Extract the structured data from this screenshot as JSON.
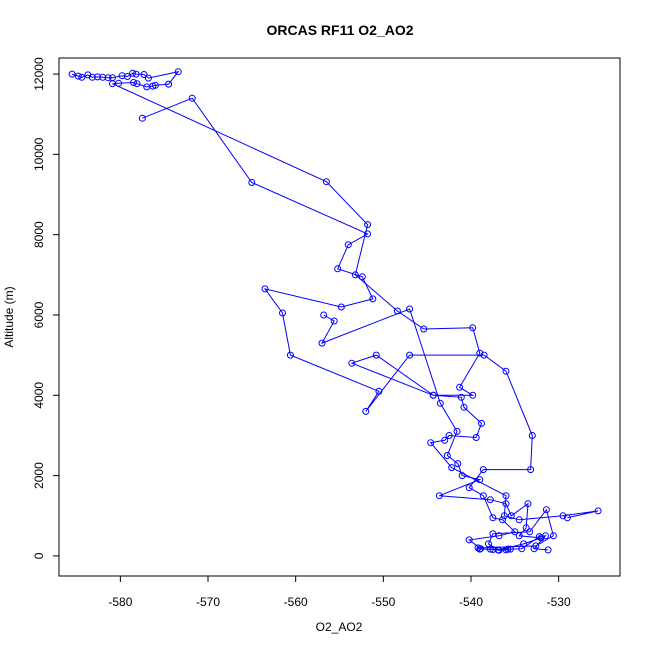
{
  "chart_data": {
    "type": "line",
    "title": "ORCAS RF11 O2_AO2",
    "xlabel": "O2_AO2",
    "ylabel": "Altitude (m)",
    "xlim": [
      -587,
      -523
    ],
    "ylim": [
      -500,
      12400
    ],
    "x_ticks": [
      -580,
      -570,
      -560,
      -550,
      -540,
      -530
    ],
    "y_ticks": [
      0,
      2000,
      4000,
      6000,
      8000,
      10000,
      12000
    ],
    "grid": false,
    "legend": "none",
    "series_color": "#0000ff",
    "markers": "open-circle",
    "series": [
      {
        "points": [
          [
            -585.5,
            12000
          ],
          [
            -584.8,
            11950
          ],
          [
            -584.4,
            11920
          ],
          [
            -583.7,
            11980
          ],
          [
            -583.2,
            11920
          ],
          [
            -582.6,
            11930
          ],
          [
            -582.0,
            11920
          ],
          [
            -581.4,
            11910
          ],
          [
            -580.9,
            11910
          ],
          [
            -579.8,
            11960
          ],
          [
            -579.2,
            11940
          ],
          [
            -578.6,
            12020
          ],
          [
            -578.2,
            12000
          ],
          [
            -577.3,
            11990
          ],
          [
            -576.8,
            11900
          ],
          [
            -573.4,
            12060
          ],
          [
            -574.5,
            11750
          ],
          [
            -576.0,
            11720
          ],
          [
            -576.3,
            11700
          ],
          [
            -577.0,
            11680
          ],
          [
            -578.1,
            11760
          ],
          [
            -578.5,
            11790
          ],
          [
            -580.2,
            11770
          ],
          [
            -580.9,
            11760
          ],
          [
            -556.5,
            9320
          ],
          [
            -551.8,
            8250
          ],
          [
            -553.2,
            7000
          ],
          [
            -548.4,
            6100
          ],
          [
            -545.4,
            5650
          ],
          [
            -539.8,
            5680
          ],
          [
            -539.0,
            5050
          ],
          [
            -541.3,
            4200
          ],
          [
            -539.8,
            4000
          ],
          [
            -544.3,
            4000
          ],
          [
            -550.8,
            5000
          ],
          [
            -553.6,
            4800
          ],
          [
            -544.3,
            4000
          ],
          [
            -541.1,
            3950
          ],
          [
            -540.8,
            3700
          ],
          [
            -538.8,
            3300
          ],
          [
            -539.4,
            2950
          ],
          [
            -542.5,
            3000
          ],
          [
            -543.0,
            2880
          ],
          [
            -544.6,
            2820
          ],
          [
            -542.2,
            2200
          ],
          [
            -536.0,
            1500
          ],
          [
            -536.2,
            1000
          ],
          [
            -534.5,
            900
          ],
          [
            -529.5,
            1000
          ],
          [
            -525.5,
            1120
          ],
          [
            -529.0,
            950
          ]
        ]
      },
      {
        "points": [
          [
            -577.5,
            10900
          ],
          [
            -571.8,
            11400
          ],
          [
            -565.0,
            9300
          ],
          [
            -551.8,
            8020
          ],
          [
            -554.0,
            7750
          ],
          [
            -555.2,
            7150
          ],
          [
            -552.4,
            6950
          ],
          [
            -551.2,
            6400
          ],
          [
            -554.8,
            6200
          ],
          [
            -563.5,
            6650
          ],
          [
            -561.5,
            6050
          ],
          [
            -560.6,
            5000
          ],
          [
            -550.5,
            4100
          ],
          [
            -552.0,
            3600
          ],
          [
            -547.0,
            5000
          ],
          [
            -538.5,
            5000
          ],
          [
            -536.0,
            4600
          ],
          [
            -533.0,
            3000
          ],
          [
            -533.2,
            2150
          ],
          [
            -538.6,
            2150
          ],
          [
            -540.2,
            1700
          ],
          [
            -538.6,
            1500
          ],
          [
            -537.5,
            950
          ],
          [
            -536.4,
            900
          ],
          [
            -535.0,
            600
          ],
          [
            -536.8,
            500
          ],
          [
            -540.2,
            400
          ],
          [
            -538.9,
            180
          ],
          [
            -537.5,
            160
          ],
          [
            -536.8,
            140
          ],
          [
            -536.0,
            150
          ],
          [
            -535.5,
            170
          ],
          [
            -534.2,
            180
          ],
          [
            -532.2,
            480
          ],
          [
            -531.5,
            500
          ],
          [
            -532.8,
            180
          ],
          [
            -531.2,
            150
          ]
        ]
      },
      {
        "points": [
          [
            -556.8,
            6000
          ],
          [
            -555.6,
            5850
          ],
          [
            -557.0,
            5300
          ],
          [
            -547.0,
            6150
          ],
          [
            -543.5,
            3800
          ],
          [
            -541.6,
            3100
          ],
          [
            -542.7,
            2500
          ],
          [
            -541.5,
            2300
          ],
          [
            -541.0,
            2000
          ],
          [
            -539.0,
            1900
          ],
          [
            -543.6,
            1500
          ],
          [
            -537.8,
            1400
          ],
          [
            -536.0,
            1300
          ],
          [
            -535.4,
            1000
          ],
          [
            -533.5,
            1300
          ],
          [
            -533.7,
            700
          ],
          [
            -534.5,
            500
          ],
          [
            -532.0,
            450
          ],
          [
            -534.0,
            300
          ],
          [
            -536.9,
            150
          ],
          [
            -538.0,
            300
          ],
          [
            -537.5,
            550
          ],
          [
            -533.3,
            600
          ],
          [
            -531.4,
            1150
          ],
          [
            -530.6,
            500
          ],
          [
            -532.6,
            250
          ],
          [
            -539.2,
            200
          ],
          [
            -539.0,
            170
          ],
          [
            -537.8,
            170
          ],
          [
            -535.8,
            170
          ]
        ]
      }
    ]
  }
}
